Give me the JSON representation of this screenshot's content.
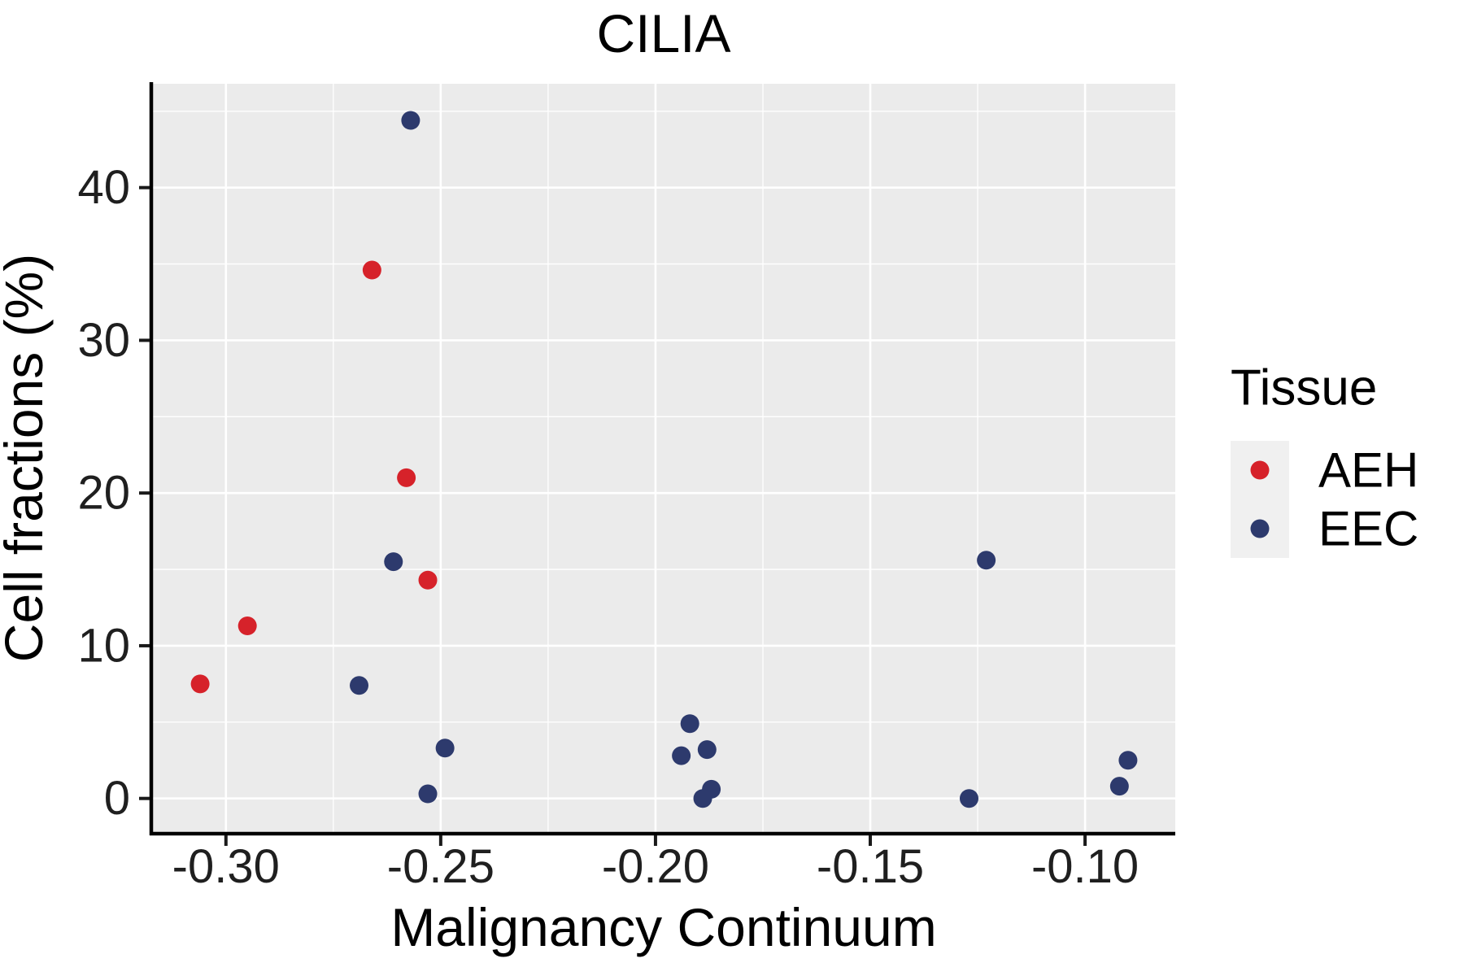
{
  "title": "CILIA",
  "colors": {
    "panel_background": "#EBEBEB",
    "grid_major": "#FFFFFF",
    "grid_minor": "#FFFFFF",
    "axis_line": "#000000",
    "tick_mark": "#1a1a1a",
    "tick_text": "#1f1f1f",
    "legend_key_background": "#F0F0F0",
    "aeh": "#D6222A",
    "eec": "#2D3A6D"
  },
  "chart_data": {
    "type": "scatter",
    "title": "CILIA",
    "xlabel": "Malignancy Continuum",
    "ylabel": "Cell fractions (%)",
    "xlim": [
      -0.317,
      -0.079
    ],
    "ylim": [
      -2.2,
      46.8
    ],
    "x_ticks": [
      -0.3,
      -0.25,
      -0.2,
      -0.15,
      -0.1
    ],
    "x_tick_labels": [
      "-0.30",
      "-0.25",
      "-0.20",
      "-0.15",
      "-0.10"
    ],
    "x_minor_ticks": [
      -0.275,
      -0.225,
      -0.175,
      -0.125
    ],
    "y_ticks": [
      0,
      10,
      20,
      30,
      40
    ],
    "y_tick_labels": [
      "0",
      "10",
      "20",
      "30",
      "40"
    ],
    "y_minor_ticks": [
      5,
      15,
      25,
      35,
      45
    ],
    "grid": true,
    "legend_position": "right",
    "legend_title": "Tissue",
    "point_radius": 11.5,
    "series": [
      {
        "name": "AEH",
        "color": "#D6222A",
        "points": [
          [
            -0.306,
            7.5
          ],
          [
            -0.295,
            11.3
          ],
          [
            -0.266,
            34.6
          ],
          [
            -0.258,
            21.0
          ],
          [
            -0.253,
            14.3
          ]
        ]
      },
      {
        "name": "EEC",
        "color": "#2D3A6D",
        "points": [
          [
            -0.257,
            44.4
          ],
          [
            -0.261,
            15.5
          ],
          [
            -0.269,
            7.4
          ],
          [
            -0.249,
            3.3
          ],
          [
            -0.253,
            0.3
          ],
          [
            -0.194,
            2.8
          ],
          [
            -0.192,
            4.9
          ],
          [
            -0.188,
            3.2
          ],
          [
            -0.187,
            0.6
          ],
          [
            -0.189,
            0.0
          ],
          [
            -0.123,
            15.6
          ],
          [
            -0.127,
            0.0
          ],
          [
            -0.09,
            2.5
          ],
          [
            -0.092,
            0.8
          ]
        ]
      }
    ]
  }
}
